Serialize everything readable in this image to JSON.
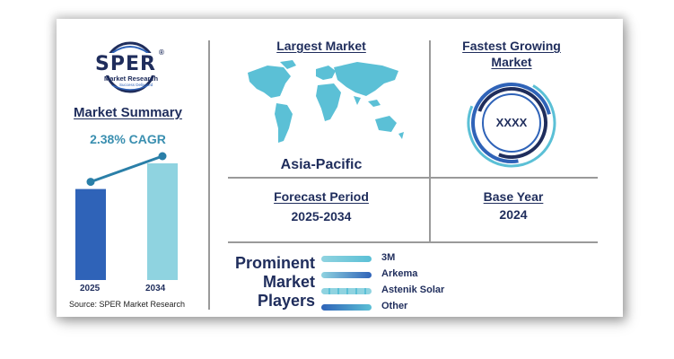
{
  "logo": {
    "brand": "SPER",
    "registered": "®",
    "subtitle": "Market Research",
    "tagline": "Success Delivered"
  },
  "summary": {
    "title": "Market Summary",
    "cagr": "2.38% CAGR",
    "source": "Source: SPER Market Research"
  },
  "chart_data": {
    "type": "bar",
    "categories": [
      "2025",
      "2034"
    ],
    "values": [
      0.78,
      1.0
    ],
    "value_note_shown": false,
    "colors": [
      "#2f63b8",
      "#8fd3e0"
    ],
    "trend_line": true
  },
  "largest_market": {
    "title": "Largest Market",
    "value": "Asia-Pacific"
  },
  "fastest_growing": {
    "title_line1": "Fastest Growing",
    "title_line2": "Market",
    "value": "XXXX"
  },
  "forecast": {
    "title": "Forecast Period",
    "value": "2025-2034"
  },
  "base_year": {
    "title": "Base Year",
    "value": "2024"
  },
  "players": {
    "heading_line1": "Prominent",
    "heading_line2": "Market",
    "heading_line3": "Players",
    "items": [
      "3M",
      "Arkema",
      "Astenik Solar",
      "Other"
    ]
  },
  "colors": {
    "navy": "#1f2d5c",
    "blue": "#2f63b8",
    "teal": "#5bc0d6",
    "light_teal": "#8fd3e0"
  }
}
